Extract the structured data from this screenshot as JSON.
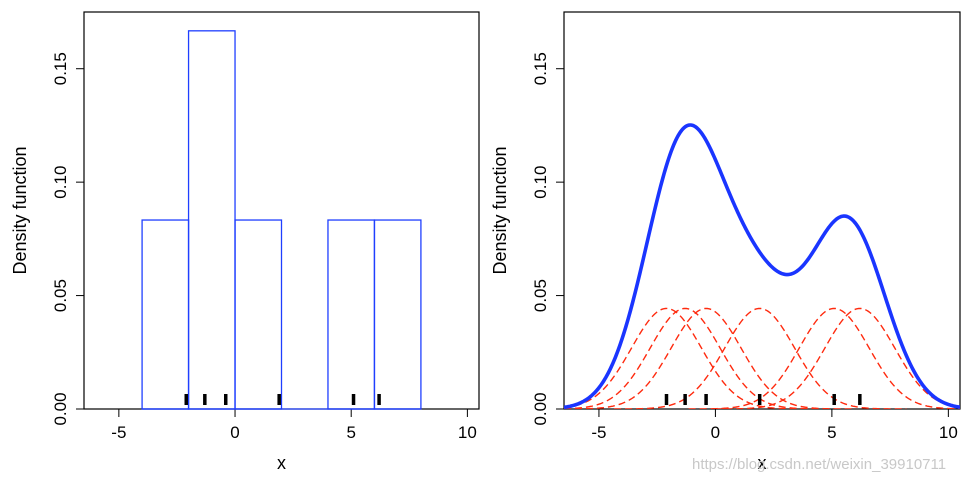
{
  "chart_data": [
    {
      "type": "histogram",
      "ylabel": "Density function",
      "xlabel": "x",
      "xlim": [
        -6.5,
        10.5
      ],
      "ylim": [
        0,
        0.175
      ],
      "xticks": [
        -5,
        0,
        5,
        10
      ],
      "yticks": [
        "0.00",
        "0.05",
        "0.10",
        "0.15"
      ],
      "bins": [
        {
          "x0": -4,
          "x1": -2,
          "density": 0.0833
        },
        {
          "x0": -2,
          "x1": 0,
          "density": 0.1667
        },
        {
          "x0": 0,
          "x1": 2,
          "density": 0.0833
        },
        {
          "x0": 2,
          "x1": 4,
          "density": 0.0
        },
        {
          "x0": 4,
          "x1": 6,
          "density": 0.0833
        },
        {
          "x0": 6,
          "x1": 8,
          "density": 0.0833
        }
      ],
      "rug": [
        -2.1,
        -1.3,
        -0.4,
        1.9,
        5.1,
        6.2
      ],
      "colors": {
        "bars": "#1f3fff",
        "rug": "#000000"
      }
    },
    {
      "type": "line",
      "ylabel": "Density function",
      "xlabel": "x",
      "xlim": [
        -6.5,
        10.5
      ],
      "ylim": [
        0,
        0.175
      ],
      "xticks": [
        -5,
        0,
        5,
        10
      ],
      "yticks": [
        "0.00",
        "0.05",
        "0.10",
        "0.15"
      ],
      "observations": [
        -2.1,
        -1.3,
        -0.4,
        1.9,
        5.1,
        6.2
      ],
      "kernel": {
        "type": "gaussian",
        "bandwidth": 1.5
      },
      "series_styles": {
        "density_color": "#1a35ff",
        "kernel_color": "#ff2a0e"
      },
      "rug": [
        -2.1,
        -1.3,
        -0.4,
        1.9,
        5.1,
        6.2
      ]
    }
  ],
  "watermark": "https://blog.csdn.net/weixin_39910711"
}
